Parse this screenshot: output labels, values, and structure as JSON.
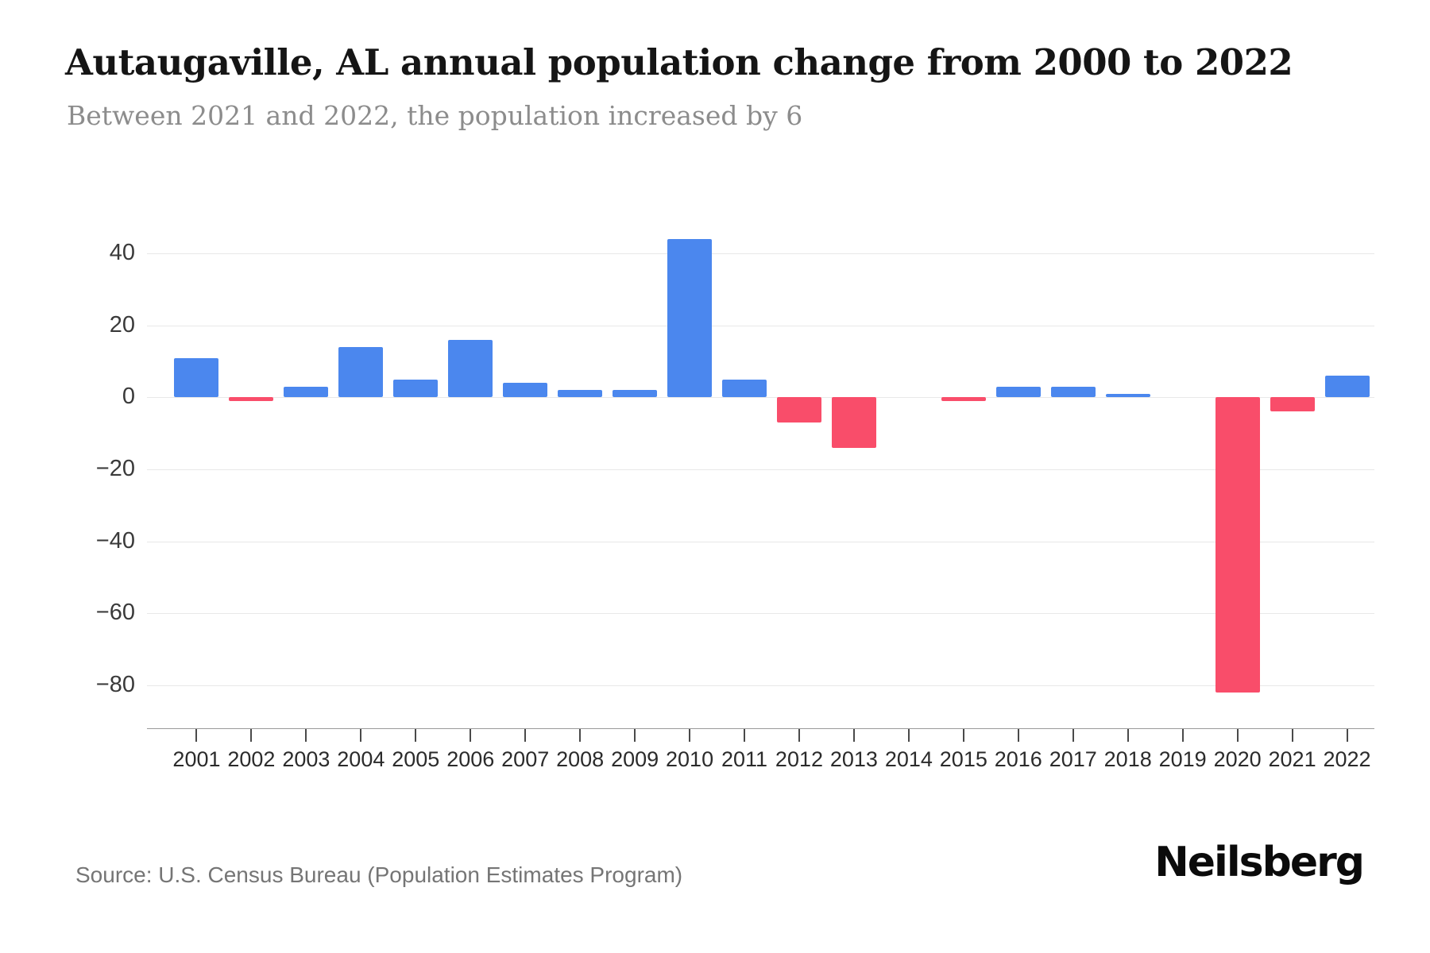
{
  "footer": {
    "source": "Source: U.S. Census Bureau (Population Estimates Program)",
    "brand": "Neilsberg"
  },
  "chart_data": {
    "type": "bar",
    "title": "Autaugaville, AL annual population change from 2000 to 2022",
    "subtitle": "Between 2021 and 2022, the population increased by 6",
    "categories": [
      "2001",
      "2002",
      "2003",
      "2004",
      "2005",
      "2006",
      "2007",
      "2008",
      "2009",
      "2010",
      "2011",
      "2012",
      "2013",
      "2014",
      "2015",
      "2016",
      "2017",
      "2018",
      "2019",
      "2020",
      "2021",
      "2022"
    ],
    "values": [
      11,
      -1,
      3,
      14,
      5,
      16,
      4,
      2,
      2,
      44,
      5,
      -7,
      -14,
      0,
      -1,
      3,
      3,
      1,
      0,
      -82,
      -4,
      6
    ],
    "xlabel": "",
    "ylabel": "",
    "yticks": [
      40,
      20,
      0,
      -20,
      -40,
      -60,
      -80
    ],
    "ylim": [
      -92,
      48
    ],
    "grid": "horizontal",
    "legend": "none",
    "positive_color": "#4b87ee",
    "negative_color": "#f94d6a"
  }
}
